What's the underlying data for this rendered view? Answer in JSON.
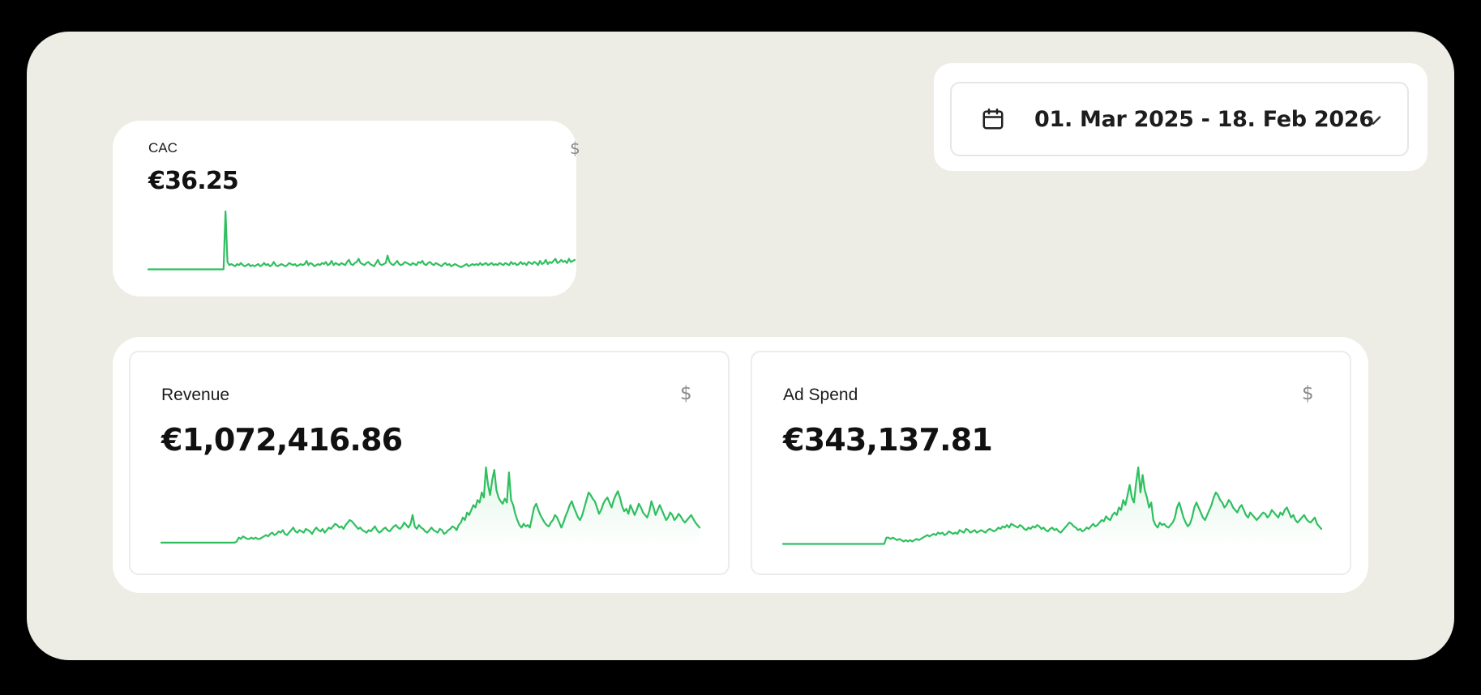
{
  "cac": {
    "title": "CAC",
    "value": "€36.25",
    "currency_symbol": "$",
    "icon": "dollar-icon"
  },
  "date_range": {
    "label": "01. Mar 2025 - 18. Feb 2026",
    "icon": "calendar-icon",
    "dropdown_icon": "chevron-down-icon"
  },
  "cards": {
    "revenue": {
      "title": "Revenue",
      "value": "€1,072,416.86",
      "currency_symbol": "$",
      "icon": "dollar-icon"
    },
    "ad_spend": {
      "title": "Ad Spend",
      "value": "€343,137.81",
      "currency_symbol": "$",
      "icon": "dollar-icon"
    }
  },
  "colors": {
    "line": "#2fbf5f",
    "background": "#edede5",
    "card": "#ffffff"
  },
  "chart_data": [
    {
      "id": "cac",
      "type": "line",
      "series": [
        {
          "values": [
            5,
            5,
            5,
            5,
            5,
            5,
            5,
            5,
            5,
            5,
            5,
            5,
            5,
            5,
            5,
            5,
            5,
            5,
            5,
            5,
            5,
            5,
            5,
            5,
            5,
            5,
            5,
            5,
            5,
            5,
            5,
            5,
            5,
            5,
            5,
            5,
            5,
            5,
            5,
            5,
            60,
            12,
            9,
            10,
            9,
            8,
            10,
            9,
            11,
            9,
            8,
            9,
            10,
            8,
            9,
            8,
            9,
            10,
            8,
            9,
            11,
            9,
            10,
            8,
            9,
            12,
            9,
            8,
            9,
            10,
            9,
            8,
            9,
            11,
            10,
            9,
            10,
            8,
            9,
            10,
            9,
            10,
            13,
            9,
            11,
            10,
            8,
            9,
            10,
            9,
            11,
            10,
            12,
            9,
            10,
            13,
            9,
            11,
            10,
            9,
            11,
            10,
            9,
            12,
            14,
            10,
            9,
            11,
            12,
            15,
            11,
            10,
            9,
            11,
            12,
            10,
            9,
            8,
            11,
            14,
            10,
            9,
            10,
            11,
            18,
            12,
            10,
            9,
            11,
            13,
            10,
            9,
            10,
            12,
            11,
            10,
            9,
            11,
            10,
            9,
            12,
            11,
            13,
            10,
            9,
            11,
            12,
            10,
            9,
            11,
            10,
            9,
            8,
            10,
            11,
            9,
            10,
            8,
            9,
            10,
            9,
            8,
            7,
            8,
            9,
            10,
            8,
            9,
            10,
            9,
            10,
            9,
            11,
            9,
            10,
            11,
            9,
            10,
            11,
            9,
            10,
            9,
            11,
            10,
            9,
            11,
            10,
            9,
            12,
            10,
            11,
            9,
            10,
            12,
            10,
            11,
            9,
            12,
            11,
            10,
            12,
            11,
            9,
            13,
            10,
            11,
            14,
            10,
            12,
            11,
            13,
            15,
            11,
            12,
            14,
            12,
            13,
            11,
            15,
            12,
            13,
            14
          ]
        }
      ]
    },
    {
      "id": "revenue",
      "type": "area",
      "series": [
        {
          "values": [
            2,
            2,
            2,
            2,
            2,
            2,
            2,
            2,
            2,
            2,
            2,
            2,
            2,
            2,
            2,
            2,
            2,
            2,
            2,
            2,
            2,
            2,
            2,
            2,
            2,
            2,
            2,
            2,
            2,
            2,
            2,
            2,
            2,
            2,
            2,
            2,
            3,
            6,
            5,
            7,
            6,
            5,
            5,
            6,
            5,
            6,
            5,
            5,
            6,
            7,
            8,
            7,
            9,
            10,
            8,
            9,
            11,
            10,
            12,
            9,
            8,
            10,
            12,
            14,
            11,
            10,
            12,
            11,
            10,
            13,
            12,
            11,
            9,
            12,
            14,
            12,
            11,
            13,
            10,
            12,
            14,
            13,
            15,
            17,
            16,
            14,
            15,
            13,
            16,
            18,
            20,
            19,
            17,
            15,
            13,
            14,
            12,
            11,
            10,
            12,
            11,
            13,
            15,
            12,
            10,
            11,
            13,
            14,
            12,
            11,
            13,
            15,
            16,
            14,
            13,
            15,
            18,
            16,
            14,
            17,
            24,
            15,
            13,
            16,
            14,
            13,
            11,
            10,
            12,
            14,
            12,
            11,
            10,
            13,
            12,
            9,
            10,
            12,
            13,
            15,
            14,
            12,
            16,
            18,
            22,
            20,
            26,
            24,
            28,
            32,
            30,
            36,
            34,
            42,
            38,
            62,
            48,
            40,
            52,
            60,
            44,
            38,
            35,
            33,
            37,
            34,
            58,
            36,
            32,
            25,
            20,
            16,
            14,
            17,
            15,
            16,
            14,
            22,
            30,
            33,
            28,
            24,
            21,
            18,
            16,
            15,
            18,
            20,
            24,
            22,
            18,
            14,
            18,
            23,
            27,
            32,
            35,
            30,
            26,
            22,
            20,
            24,
            30,
            36,
            42,
            40,
            37,
            35,
            30,
            25,
            28,
            33,
            36,
            38,
            34,
            30,
            36,
            40,
            43,
            38,
            31,
            27,
            29,
            25,
            32,
            28,
            24,
            28,
            33,
            30,
            26,
            24,
            22,
            27,
            35,
            30,
            24,
            28,
            32,
            28,
            24,
            20,
            22,
            26,
            24,
            20,
            22,
            25,
            23,
            20,
            18,
            20,
            22,
            24,
            21,
            18,
            16,
            14
          ]
        }
      ]
    },
    {
      "id": "ad_spend",
      "type": "area",
      "series": [
        {
          "values": [
            1,
            1,
            1,
            1,
            1,
            1,
            1,
            1,
            1,
            1,
            1,
            1,
            1,
            1,
            1,
            1,
            1,
            1,
            1,
            1,
            1,
            1,
            1,
            1,
            1,
            1,
            1,
            1,
            1,
            1,
            1,
            1,
            1,
            1,
            1,
            1,
            1,
            1,
            1,
            1,
            1,
            1,
            1,
            1,
            1,
            1,
            1,
            1,
            6,
            6,
            5,
            6,
            5,
            4,
            5,
            4,
            3,
            4,
            3,
            4,
            3,
            4,
            5,
            4,
            5,
            6,
            7,
            8,
            7,
            8,
            9,
            8,
            10,
            9,
            10,
            8,
            9,
            11,
            10,
            9,
            10,
            9,
            12,
            11,
            10,
            13,
            12,
            10,
            11,
            12,
            10,
            11,
            12,
            11,
            10,
            12,
            13,
            12,
            11,
            12,
            14,
            13,
            15,
            14,
            16,
            14,
            17,
            16,
            15,
            14,
            16,
            15,
            13,
            12,
            14,
            13,
            15,
            14,
            16,
            15,
            13,
            14,
            12,
            11,
            13,
            14,
            12,
            13,
            11,
            10,
            12,
            14,
            16,
            18,
            17,
            15,
            14,
            12,
            13,
            11,
            12,
            14,
            13,
            15,
            17,
            15,
            16,
            18,
            20,
            19,
            23,
            21,
            20,
            24,
            26,
            24,
            30,
            28,
            36,
            32,
            40,
            48,
            38,
            34,
            50,
            62,
            42,
            56,
            44,
            38,
            30,
            34,
            20,
            16,
            14,
            18,
            16,
            17,
            15,
            14,
            16,
            18,
            22,
            30,
            34,
            28,
            22,
            18,
            15,
            17,
            22,
            30,
            34,
            30,
            26,
            22,
            20,
            24,
            28,
            32,
            38,
            42,
            40,
            36,
            34,
            30,
            32,
            36,
            34,
            30,
            28,
            26,
            30,
            32,
            28,
            24,
            22,
            26,
            24,
            22,
            20,
            22,
            24,
            26,
            25,
            22,
            24,
            28,
            26,
            24,
            22,
            26,
            24,
            28,
            30,
            26,
            22,
            24,
            20,
            18,
            20,
            22,
            24,
            21,
            19,
            18,
            20,
            22,
            17,
            15,
            13
          ]
        }
      ]
    }
  ]
}
